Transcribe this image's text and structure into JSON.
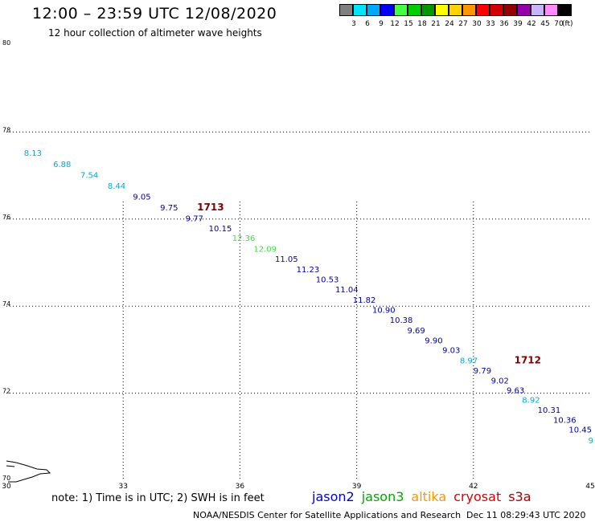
{
  "header": {
    "title": "12:00 – 23:59 UTC 12/08/2020",
    "subtitle": "12 hour collection of altimeter wave heights"
  },
  "color_scale": {
    "bins": [
      {
        "label": "3",
        "color": "#808080"
      },
      {
        "label": "6",
        "color": "#00e5ff"
      },
      {
        "label": "9",
        "color": "#00a8ff"
      },
      {
        "label": "12",
        "color": "#0000ff"
      },
      {
        "label": "15",
        "color": "#44ff44"
      },
      {
        "label": "18",
        "color": "#00cc00"
      },
      {
        "label": "21",
        "color": "#009600"
      },
      {
        "label": "24",
        "color": "#ffff00"
      },
      {
        "label": "27",
        "color": "#ffd200"
      },
      {
        "label": "30",
        "color": "#ff9600"
      },
      {
        "label": "33",
        "color": "#ff0000"
      },
      {
        "label": "36",
        "color": "#d20000"
      },
      {
        "label": "39",
        "color": "#960000"
      },
      {
        "label": "42",
        "color": "#9600aa"
      },
      {
        "label": "45",
        "color": "#c8b4ff"
      },
      {
        "label": "70",
        "color": "#ff8cff"
      },
      {
        "label": "",
        "color": "#000000"
      }
    ],
    "unit": "(ft)"
  },
  "chart_data": {
    "type": "scatter",
    "title": "12:00 – 23:59 UTC 12/08/2020",
    "subtitle": "12 hour collection of altimeter wave heights",
    "xlabel": "",
    "ylabel": "",
    "xlim": [
      30,
      45
    ],
    "ylim": [
      70,
      80
    ],
    "x_ticks": [
      30,
      33,
      36,
      39,
      42,
      45
    ],
    "y_ticks": [
      70,
      72,
      74,
      76,
      78,
      80
    ],
    "grid": true,
    "colors": {
      "cyan": "#00aadd",
      "navy": "#0000aa",
      "green": "#44dd44",
      "maroon": "#800000"
    },
    "series": [
      {
        "satellite_color_key": "mixed",
        "points": [
          {
            "x": 30.45,
            "y": 77.45,
            "value": "8.13",
            "color": "cyan"
          },
          {
            "x": 31.2,
            "y": 77.2,
            "value": "6.88",
            "color": "cyan"
          },
          {
            "x": 31.9,
            "y": 76.95,
            "value": "7.54",
            "color": "cyan"
          },
          {
            "x": 32.6,
            "y": 76.7,
            "value": "8.44",
            "color": "cyan"
          },
          {
            "x": 33.25,
            "y": 76.45,
            "value": "9.05",
            "color": "navy"
          },
          {
            "x": 33.95,
            "y": 76.2,
            "value": "9.75",
            "color": "navy"
          },
          {
            "x": 34.6,
            "y": 75.95,
            "value": "9.77",
            "color": "navy"
          },
          {
            "x": 35.2,
            "y": 75.72,
            "value": "10.15",
            "color": "navy"
          },
          {
            "x": 35.8,
            "y": 75.5,
            "value": "12.36",
            "color": "green"
          },
          {
            "x": 36.35,
            "y": 75.25,
            "value": "12.09",
            "color": "green"
          },
          {
            "x": 36.9,
            "y": 75.02,
            "value": "11.05",
            "color": "navy"
          },
          {
            "x": 37.45,
            "y": 74.78,
            "value": "11.23",
            "color": "navy"
          },
          {
            "x": 37.95,
            "y": 74.55,
            "value": "10.53",
            "color": "navy"
          },
          {
            "x": 38.45,
            "y": 74.32,
            "value": "11.04",
            "color": "navy"
          },
          {
            "x": 38.9,
            "y": 74.08,
            "value": "11.82",
            "color": "navy"
          },
          {
            "x": 39.4,
            "y": 73.85,
            "value": "10.90",
            "color": "navy"
          },
          {
            "x": 39.85,
            "y": 73.62,
            "value": "10.38",
            "color": "navy"
          },
          {
            "x": 40.3,
            "y": 73.38,
            "value": "9.69",
            "color": "navy"
          },
          {
            "x": 40.75,
            "y": 73.15,
            "value": "9.90",
            "color": "navy"
          },
          {
            "x": 41.2,
            "y": 72.92,
            "value": "9.03",
            "color": "navy"
          },
          {
            "x": 41.65,
            "y": 72.68,
            "value": "8.97",
            "color": "cyan"
          },
          {
            "x": 42.0,
            "y": 72.45,
            "value": "9.79",
            "color": "navy"
          },
          {
            "x": 42.45,
            "y": 72.22,
            "value": "9.02",
            "color": "navy"
          },
          {
            "x": 42.85,
            "y": 72.0,
            "value": "9.63",
            "color": "navy"
          },
          {
            "x": 43.25,
            "y": 71.78,
            "value": "8.92",
            "color": "cyan"
          },
          {
            "x": 43.65,
            "y": 71.55,
            "value": "10.31",
            "color": "navy"
          },
          {
            "x": 44.05,
            "y": 71.32,
            "value": "10.36",
            "color": "navy"
          },
          {
            "x": 44.45,
            "y": 71.1,
            "value": "10.45",
            "color": "navy"
          },
          {
            "x": 44.95,
            "y": 70.85,
            "value": "9",
            "color": "cyan"
          }
        ]
      }
    ],
    "annotations": [
      {
        "x": 34.9,
        "y": 76.2,
        "text": "1713",
        "color": "maroon"
      },
      {
        "x": 43.05,
        "y": 72.68,
        "text": "1712",
        "color": "maroon"
      }
    ]
  },
  "footer": {
    "note": "note: 1) Time is in UTC; 2) SWH is in feet",
    "satellites": [
      {
        "name": "jason2",
        "color": "#0000dd"
      },
      {
        "name": "jason3",
        "color": "#00aa00"
      },
      {
        "name": "altika",
        "color": "#ff9600"
      },
      {
        "name": "cryosat",
        "color": "#dd0000"
      },
      {
        "name": "s3a",
        "color": "#aa0000"
      }
    ],
    "credit": "NOAA/NESDIS Center for Satellite Applications and Research",
    "generated": "Dec 11 08:29:43 UTC 2020"
  }
}
